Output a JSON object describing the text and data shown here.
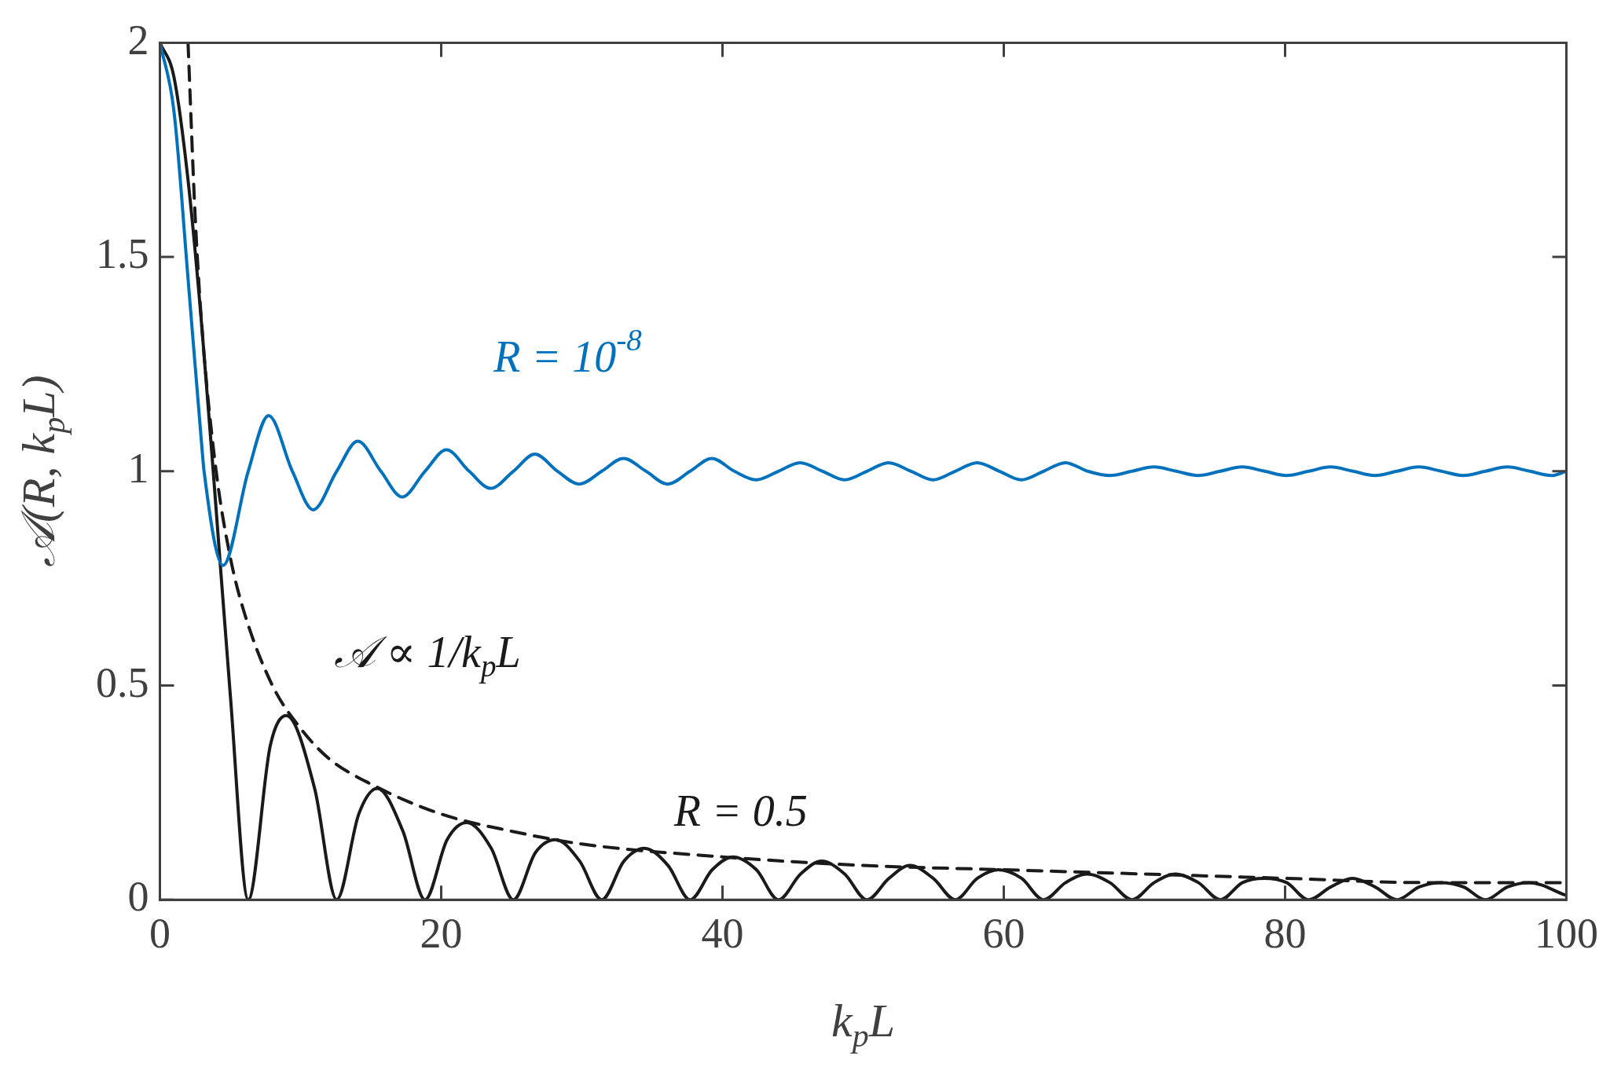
{
  "chart_data": {
    "type": "line",
    "xlabel": "k$_{p}$L",
    "ylabel": "𝒜(R, k$_{p}$L)",
    "xlim": [
      0,
      100
    ],
    "xticks": [
      0,
      20,
      40,
      60,
      80,
      100
    ],
    "ylim": [
      0,
      2
    ],
    "yticks": [
      0,
      {
        "value": 0.5,
        "label": "0.5"
      },
      1,
      {
        "value": 1.5,
        "label": "1.5"
      },
      2
    ],
    "grid": false,
    "legend": false,
    "marker": "none",
    "series": [
      {
        "name": "R = 10$^{-8}$",
        "color": "#0072bd",
        "line_style": "solid",
        "x": [
          0,
          1,
          2,
          3,
          3.14,
          4.49,
          6.28,
          7.73,
          9.42,
          10.9,
          12.57,
          14.07,
          15.71,
          17.22,
          18.85,
          20.37,
          21.99,
          23.52,
          25.13,
          26.66,
          28.27,
          29.81,
          31.42,
          32.95,
          34.56,
          36.1,
          37.7,
          39.24,
          40.84,
          42.38,
          43.98,
          45.52,
          47.12,
          48.67,
          50.27,
          51.8,
          53.41,
          54.96,
          56.55,
          58.1,
          59.69,
          61.24,
          62.83,
          64.38,
          65.97,
          67.53,
          69.12,
          70.67,
          72.26,
          73.8,
          75.4,
          76.95,
          78.54,
          80.1,
          81.68,
          83.24,
          84.82,
          86.38,
          87.96,
          89.5,
          91.11,
          92.66,
          94.25,
          95.8,
          97.39,
          98.95,
          100
        ],
        "values": [
          2,
          1.84,
          1.45,
          1.05,
          1,
          0.78,
          1,
          1.13,
          1,
          0.91,
          1,
          1.07,
          1,
          0.94,
          1,
          1.05,
          1,
          0.96,
          1,
          1.04,
          1,
          0.97,
          1,
          1.03,
          1,
          0.97,
          1,
          1.03,
          1,
          0.98,
          1,
          1.02,
          1,
          0.98,
          1,
          1.02,
          1,
          0.98,
          1,
          1.02,
          1,
          0.98,
          1,
          1.02,
          1,
          0.99,
          1,
          1.01,
          1,
          0.99,
          1,
          1.01,
          1,
          0.99,
          1,
          1.01,
          1,
          0.99,
          1,
          1.01,
          1,
          0.99,
          1,
          1.01,
          1,
          0.99,
          1
        ]
      },
      {
        "name": "𝒜 ∝ 1/k$_{p}$L",
        "color": "#1a1a1a",
        "line_style": "dashed",
        "x": [
          2,
          2.5,
          3,
          4,
          5,
          6,
          8,
          10,
          12,
          15,
          20,
          25,
          30,
          40,
          50,
          60,
          70,
          80,
          90,
          100
        ],
        "values": [
          2,
          1.6,
          1.33,
          1,
          0.8,
          0.67,
          0.5,
          0.4,
          0.33,
          0.27,
          0.2,
          0.16,
          0.13,
          0.1,
          0.08,
          0.07,
          0.06,
          0.05,
          0.04,
          0.04
        ]
      },
      {
        "name": "R = 0.5",
        "color": "#1a1a1a",
        "line_style": "solid",
        "x": [
          0,
          1,
          2,
          3,
          4,
          5,
          6.28,
          7.85,
          8.99,
          11,
          12.57,
          14.14,
          15.45,
          17.28,
          18.85,
          20.42,
          21.81,
          23.56,
          25.13,
          26.7,
          28.13,
          29.85,
          31.42,
          32.99,
          34.44,
          36.13,
          37.7,
          39.27,
          40.74,
          42.41,
          43.98,
          45.55,
          47.04,
          48.69,
          50.27,
          51.84,
          53.32,
          54.98,
          56.55,
          58.12,
          59.62,
          61.26,
          62.83,
          64.4,
          65.92,
          67.54,
          69.12,
          70.69,
          72.2,
          73.83,
          75.4,
          76.97,
          78.5,
          80.11,
          81.68,
          83.25,
          84.78,
          86.39,
          87.96,
          89.54,
          91.06,
          92.68,
          94.25,
          95.82,
          97.34,
          100
        ],
        "values": [
          2,
          1.92,
          1.68,
          1.33,
          0.91,
          0.48,
          0,
          0.36,
          0.43,
          0.26,
          0,
          0.2,
          0.26,
          0.16,
          0,
          0.14,
          0.18,
          0.12,
          0,
          0.11,
          0.14,
          0.09,
          0,
          0.09,
          0.12,
          0.08,
          0,
          0.07,
          0.1,
          0.07,
          0,
          0.06,
          0.09,
          0.06,
          0,
          0.05,
          0.08,
          0.05,
          0,
          0.05,
          0.07,
          0.05,
          0,
          0.04,
          0.06,
          0.04,
          0,
          0.04,
          0.06,
          0.04,
          0,
          0.04,
          0.05,
          0.04,
          0,
          0.03,
          0.05,
          0.03,
          0,
          0.03,
          0.04,
          0.03,
          0,
          0.03,
          0.04,
          0.01
        ]
      }
    ]
  }
}
